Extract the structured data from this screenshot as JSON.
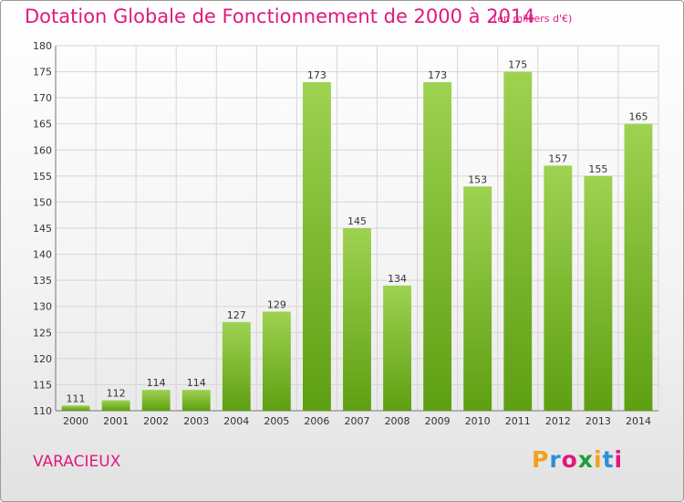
{
  "header": {
    "title": "Dotation Globale de Fonctionnement de 2000 à 2014",
    "subtitle": "(en milliers d'€)"
  },
  "footer": {
    "place": "VARACIEUX",
    "logo": "Proxiti"
  },
  "colors": {
    "text_accent": "#e0197d",
    "bar_light": "#9ed251",
    "bar_dark": "#5e9f12"
  },
  "chart_data": {
    "type": "bar",
    "title": "Dotation Globale de Fonctionnement de 2000 à 2014",
    "subtitle": "(en milliers d'€)",
    "xlabel": "",
    "ylabel": "",
    "categories": [
      "2000",
      "2001",
      "2002",
      "2003",
      "2004",
      "2005",
      "2006",
      "2007",
      "2008",
      "2009",
      "2010",
      "2011",
      "2012",
      "2013",
      "2014"
    ],
    "values": [
      111,
      112,
      114,
      114,
      127,
      129,
      173,
      145,
      134,
      173,
      153,
      175,
      157,
      155,
      165
    ],
    "ylim": [
      110,
      180
    ],
    "yticks": [
      110,
      115,
      120,
      125,
      130,
      135,
      140,
      145,
      150,
      155,
      160,
      165,
      170,
      175,
      180
    ],
    "grid": true,
    "legend": "none"
  }
}
